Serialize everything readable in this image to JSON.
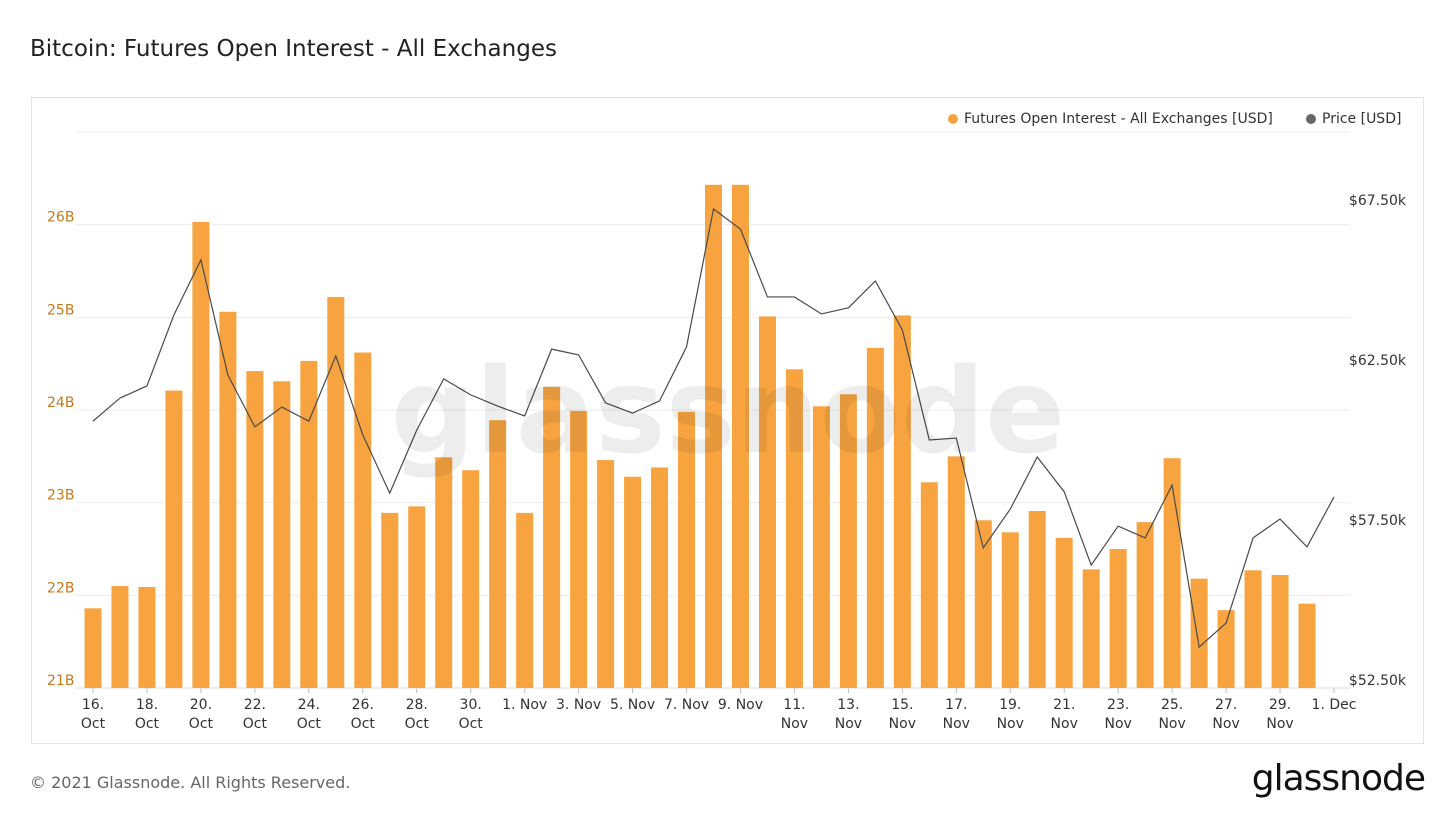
{
  "chart_data": {
    "type": "bar",
    "title": "Bitcoin: Futures Open Interest - All Exchanges",
    "watermark": "glassnode",
    "footer": "© 2021 Glassnode. All Rights Reserved.",
    "logo": "glassnode",
    "categories": [
      "16. Oct",
      null,
      "18. Oct",
      null,
      "20. Oct",
      null,
      "22. Oct",
      null,
      "24. Oct",
      null,
      "26. Oct",
      null,
      "28. Oct",
      null,
      "30. Oct",
      null,
      "1. Nov",
      null,
      "3. Nov",
      null,
      "5. Nov",
      null,
      "7. Nov",
      null,
      "9. Nov",
      null,
      "11. Nov",
      null,
      "13. Nov",
      null,
      "15. Nov",
      null,
      "17. Nov",
      null,
      "19. Nov",
      null,
      "21. Nov",
      null,
      "23. Nov",
      null,
      "25. Nov",
      null,
      "27. Nov",
      null,
      "29. Nov",
      null,
      "1. Dec"
    ],
    "series": [
      {
        "name": "Futures Open Interest - All Exchanges [USD]",
        "color": "#f7a440",
        "values": [
          21.86,
          22.1,
          22.09,
          24.21,
          26.03,
          25.06,
          24.42,
          24.31,
          24.53,
          25.22,
          24.62,
          22.89,
          22.96,
          23.49,
          23.35,
          23.89,
          22.89,
          24.25,
          23.99,
          23.46,
          23.28,
          23.38,
          23.98,
          26.43,
          26.43,
          25.01,
          24.44,
          24.04,
          24.17,
          24.67,
          25.02,
          23.22,
          23.5,
          22.81,
          22.68,
          22.91,
          22.62,
          22.28,
          22.5,
          22.79,
          23.48,
          22.18,
          21.84,
          22.27,
          22.22,
          21.91,
          null
        ]
      },
      {
        "name": "Price [USD]",
        "color": "#666666",
        "axis": "y2",
        "values": [
          60.84,
          61.56,
          61.94,
          64.16,
          65.88,
          62.28,
          60.66,
          61.28,
          60.84,
          62.88,
          60.41,
          58.59,
          60.56,
          62.16,
          61.66,
          61.31,
          61.0,
          63.09,
          62.91,
          61.41,
          61.09,
          61.47,
          63.16,
          67.47,
          66.84,
          64.72,
          64.72,
          64.19,
          64.38,
          65.22,
          63.69,
          60.25,
          60.31,
          56.88,
          58.09,
          59.72,
          58.63,
          56.34,
          57.56,
          57.19,
          58.84,
          53.78,
          54.53,
          57.19,
          57.78,
          56.91,
          58.47
        ]
      }
    ],
    "ylim": [
      21,
      27
    ],
    "yticks": [
      {
        "value": 21,
        "label": "21B"
      },
      {
        "value": 22,
        "label": "22B"
      },
      {
        "value": 23,
        "label": "23B"
      },
      {
        "value": 24,
        "label": "24B"
      },
      {
        "value": 25,
        "label": "25B"
      },
      {
        "value": 26,
        "label": "26B"
      }
    ],
    "y2lim": [
      52.5,
      69.875
    ],
    "y2ticks": [
      {
        "value": 52.5,
        "label": "$52.50k"
      },
      {
        "value": 57.5,
        "label": "$57.50k"
      },
      {
        "value": 62.5,
        "label": "$62.50k"
      },
      {
        "value": 67.5,
        "label": "$67.50k"
      }
    ],
    "grid": true,
    "legend": "top-right"
  }
}
